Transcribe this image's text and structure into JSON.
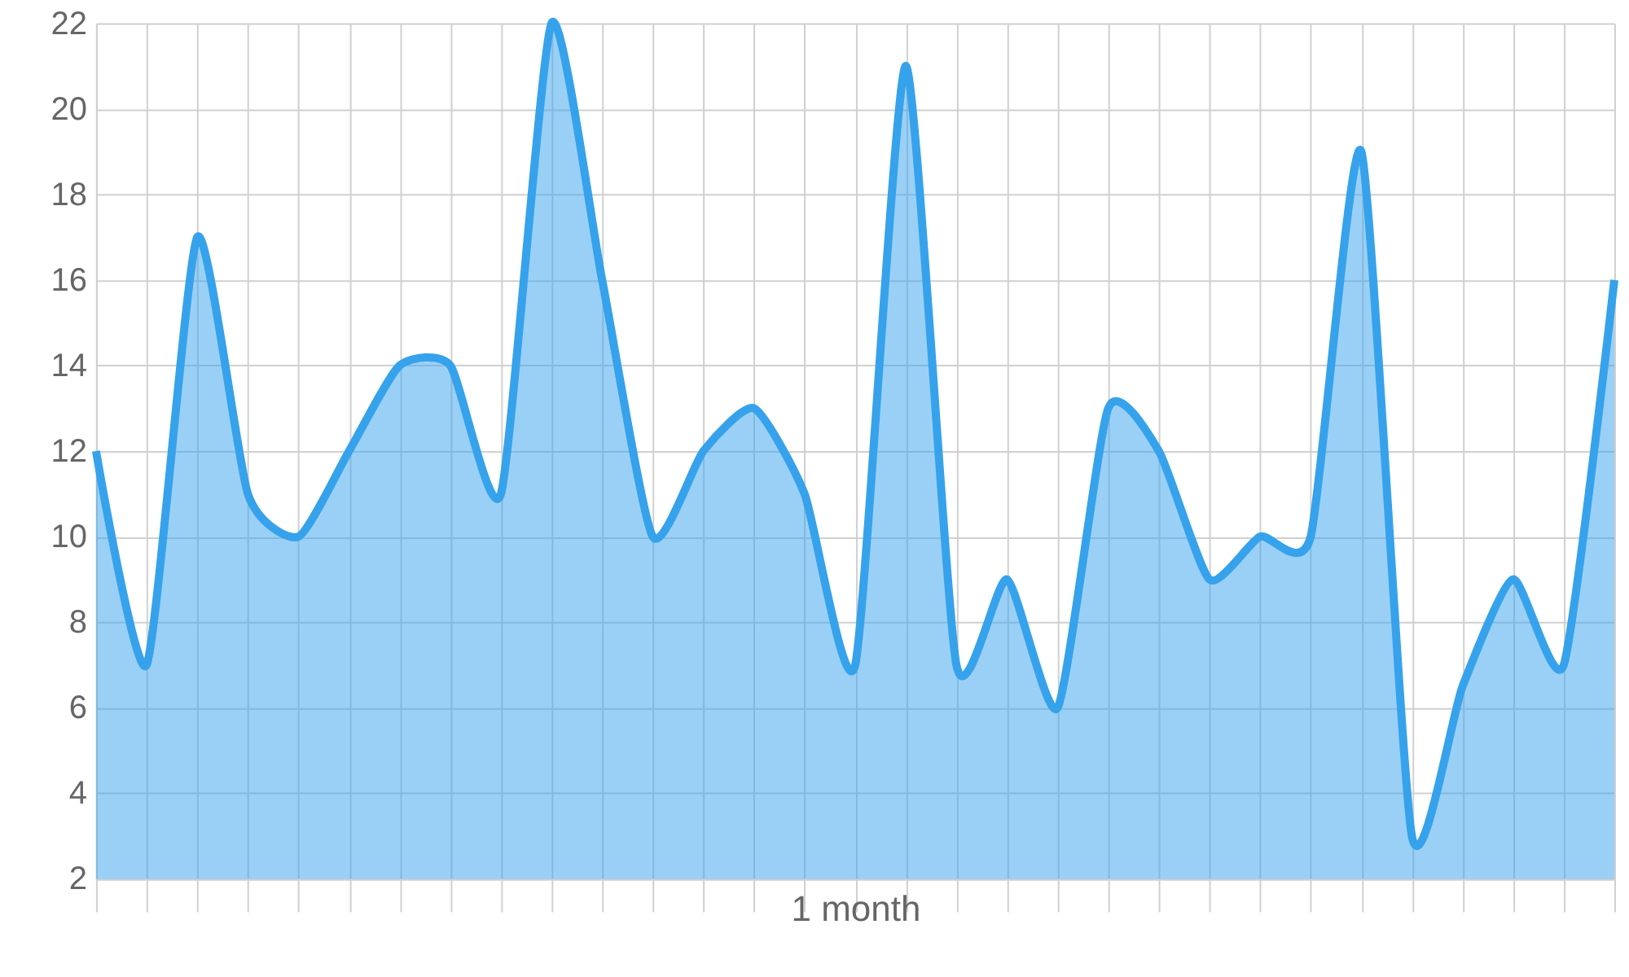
{
  "chart_data": {
    "type": "area",
    "xlabel": "1 month",
    "categories": [
      null,
      null,
      null,
      null,
      null,
      null,
      null,
      null,
      null,
      null,
      null,
      null,
      null,
      null,
      null,
      null,
      null,
      null,
      null,
      null,
      null,
      null,
      null,
      null,
      null,
      null,
      null,
      null,
      null,
      null,
      null
    ],
    "series": [
      {
        "color": "#36a2eb",
        "values": [
          12,
          7,
          17,
          11,
          10,
          12,
          14,
          14,
          11,
          22,
          16,
          10,
          12,
          13,
          11,
          7,
          21,
          7,
          9,
          6,
          13,
          12,
          9,
          10,
          10,
          19,
          3,
          6.5,
          9,
          7,
          16
        ]
      }
    ],
    "ylim": [
      2,
      22
    ],
    "yticks": [
      2,
      4,
      6,
      8,
      10,
      12,
      14,
      16,
      18,
      20,
      22
    ],
    "grid": true,
    "tick_labels": "y"
  }
}
